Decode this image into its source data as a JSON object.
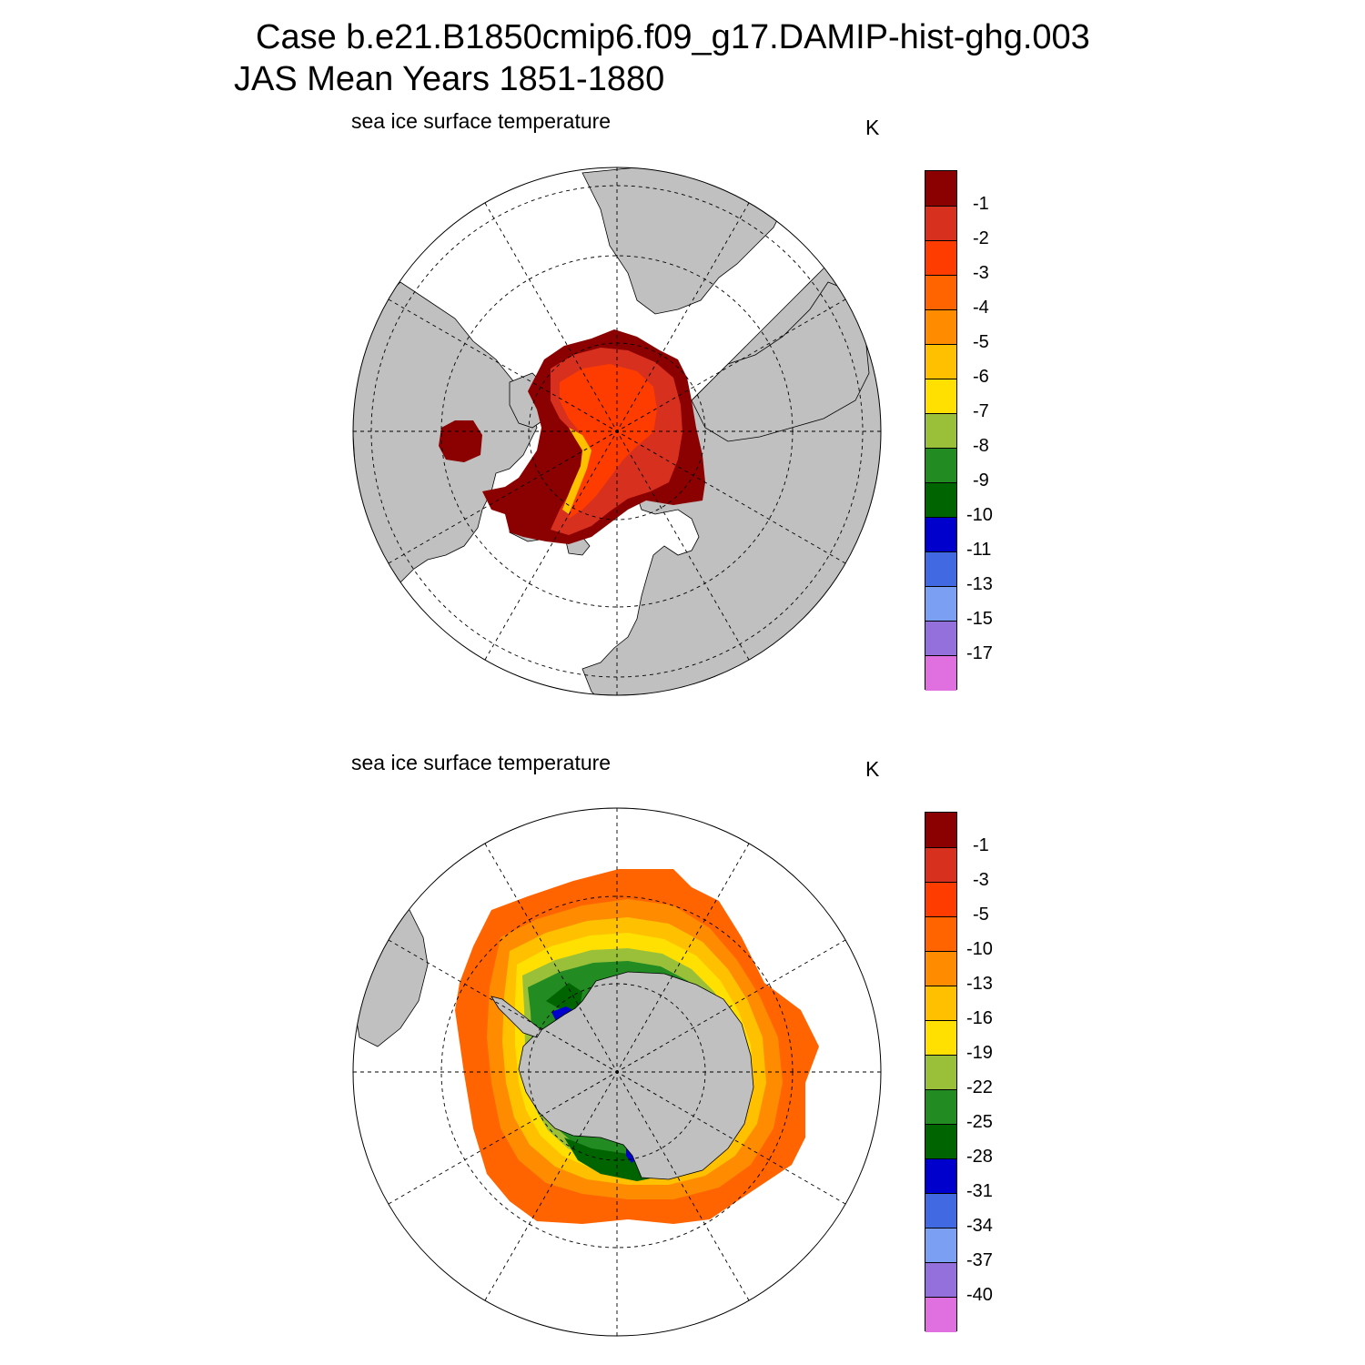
{
  "title": {
    "case": "Case b.e21.B1850cmip6.f09_g17.DAMIP-hist-ghg.003",
    "period": "JAS Mean   Years 1851-1880"
  },
  "colors": {
    "land": "#c0c0c0",
    "palette": [
      "#8b0000",
      "#d7301f",
      "#ff3c00",
      "#ff6400",
      "#ff8c00",
      "#ffc000",
      "#ffe000",
      "#9ac03a",
      "#228b22",
      "#006400",
      "#0000cd",
      "#4169e1",
      "#7b9ff2",
      "#9370db",
      "#e070e0"
    ]
  },
  "panels": [
    {
      "id": "north",
      "label": "sea ice surface temperature",
      "unit": "K",
      "hemisphere": "Arctic",
      "colorbar_ticks": [
        "-1",
        "-2",
        "-3",
        "-4",
        "-5",
        "-6",
        "-7",
        "-8",
        "-9",
        "-10",
        "-11",
        "-13",
        "-15",
        "-17"
      ]
    },
    {
      "id": "south",
      "label": "sea ice surface temperature",
      "unit": "K",
      "hemisphere": "Antarctic",
      "colorbar_ticks": [
        "-1",
        "-3",
        "-5",
        "-10",
        "-13",
        "-16",
        "-19",
        "-22",
        "-25",
        "-28",
        "-31",
        "-34",
        "-37",
        "-40"
      ]
    }
  ]
}
